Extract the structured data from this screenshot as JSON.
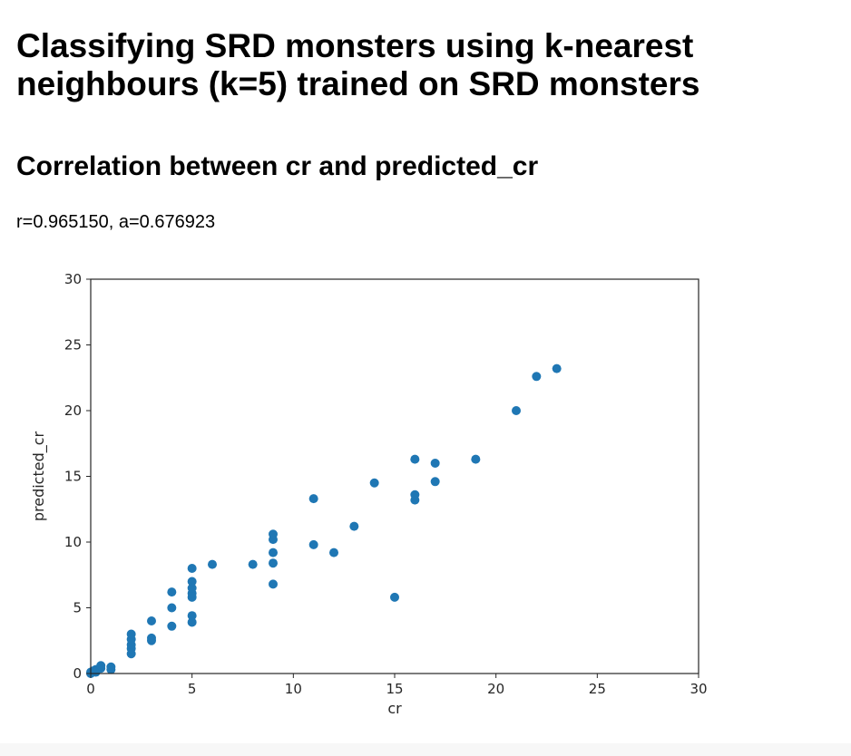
{
  "page": {
    "title": "Classifying SRD monsters using k-nearest neighbours (k=5) trained on SRD monsters",
    "section_heading": "Correlation between cr and predicted_cr",
    "stats": "r=0.965150, a=0.676923"
  },
  "colors": {
    "points": "#1f77b4",
    "axes": "#262626"
  },
  "chart_data": {
    "type": "scatter",
    "title": "",
    "xlabel": "cr",
    "ylabel": "predicted_cr",
    "xlim": [
      0,
      30
    ],
    "ylim": [
      0,
      30
    ],
    "xticks": [
      0,
      5,
      10,
      15,
      20,
      25,
      30
    ],
    "yticks": [
      0,
      5,
      10,
      15,
      20,
      25,
      30
    ],
    "grid": false,
    "series": [
      {
        "points": [
          [
            0,
            0
          ],
          [
            0,
            0.1
          ],
          [
            0.125,
            0.2
          ],
          [
            0.25,
            0.3
          ],
          [
            0.25,
            0.1
          ],
          [
            0.5,
            0.4
          ],
          [
            0.5,
            0.6
          ],
          [
            1,
            0.3
          ],
          [
            1,
            0.5
          ],
          [
            2,
            1.5
          ],
          [
            2,
            1.9
          ],
          [
            2,
            2.2
          ],
          [
            2,
            2.6
          ],
          [
            2,
            3.0
          ],
          [
            3,
            2.5
          ],
          [
            3,
            2.7
          ],
          [
            3,
            4.0
          ],
          [
            4,
            3.6
          ],
          [
            4,
            5.0
          ],
          [
            4,
            6.2
          ],
          [
            5,
            3.9
          ],
          [
            5,
            4.4
          ],
          [
            5,
            5.8
          ],
          [
            5,
            6.1
          ],
          [
            5,
            6.5
          ],
          [
            5,
            7.0
          ],
          [
            5,
            8.0
          ],
          [
            6,
            8.3
          ],
          [
            8,
            8.3
          ],
          [
            9,
            6.8
          ],
          [
            9,
            8.4
          ],
          [
            9,
            9.2
          ],
          [
            9,
            10.2
          ],
          [
            9,
            10.6
          ],
          [
            11,
            9.8
          ],
          [
            11,
            13.3
          ],
          [
            12,
            9.2
          ],
          [
            13,
            11.2
          ],
          [
            14,
            14.5
          ],
          [
            15,
            5.8
          ],
          [
            16,
            13.2
          ],
          [
            16,
            13.6
          ],
          [
            16,
            16.3
          ],
          [
            17,
            14.6
          ],
          [
            17,
            16.0
          ],
          [
            19,
            16.3
          ],
          [
            21,
            20.0
          ],
          [
            22,
            22.6
          ],
          [
            23,
            23.2
          ]
        ]
      }
    ]
  }
}
